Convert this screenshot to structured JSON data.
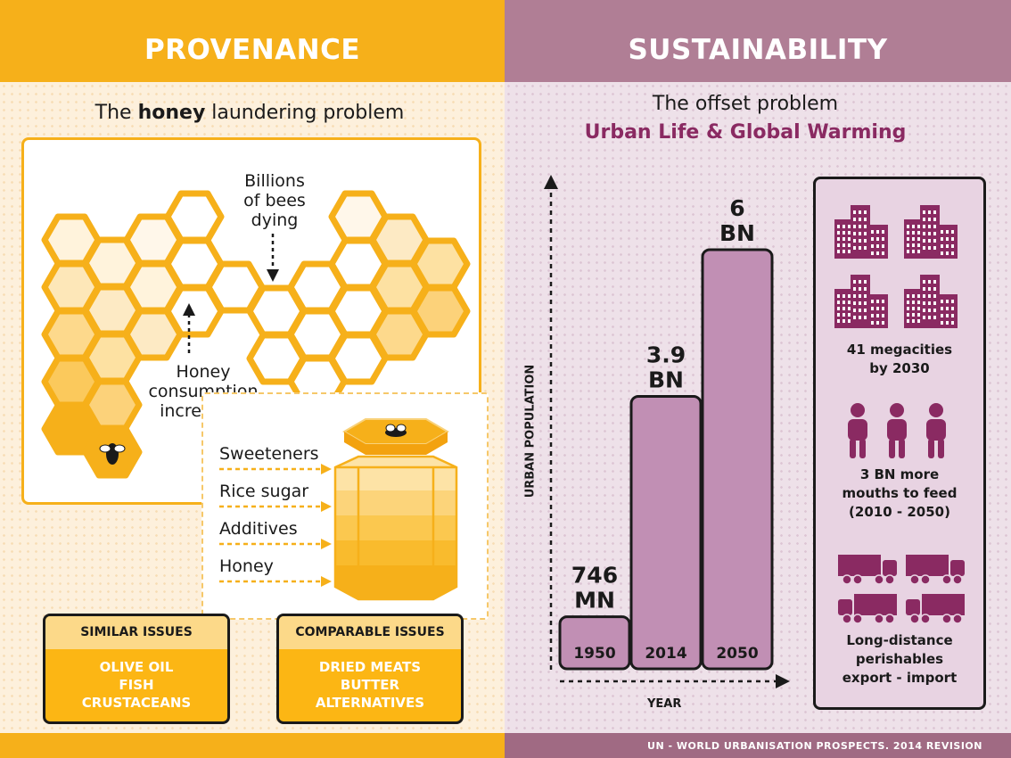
{
  "provenance": {
    "header": "PROVENANCE",
    "subtitle_pre": "The ",
    "subtitle_bold": "honey",
    "subtitle_post": " laundering problem",
    "bees_line1": "Billions",
    "bees_line2": "of bees",
    "bees_line3": "dying",
    "honey_line1": "Honey",
    "honey_line2": "consumption",
    "honey_line3": "increasing",
    "jar_ingredients": [
      "Sweeteners",
      "Rice sugar",
      "Additives",
      "Honey"
    ],
    "similar": {
      "title": "SIMILAR ISSUES",
      "items": [
        "OLIVE OIL",
        "FISH",
        "CRUSTACEANS"
      ]
    },
    "comparable": {
      "title": "COMPARABLE ISSUES",
      "items": [
        "DRIED MEATS",
        "BUTTER",
        "ALTERNATIVES"
      ]
    }
  },
  "sustainability": {
    "header": "SUSTAINABILITY",
    "subtitle1": "The offset problem",
    "subtitle2": "Urban Life & Global Warming",
    "megacities": {
      "line1": "41 megacities",
      "line2": "by 2030"
    },
    "mouths": {
      "line1": "3 BN more",
      "line2": "mouths to feed",
      "line3": "(2010 - 2050)"
    },
    "perishables": {
      "line1": "Long-distance",
      "line2": "perishables",
      "line3": "export - import"
    }
  },
  "chart_data": {
    "type": "bar",
    "categories": [
      "1950",
      "2014",
      "2050"
    ],
    "values": [
      0.746,
      3.9,
      6.0
    ],
    "value_labels": [
      [
        "746",
        "MN"
      ],
      [
        "3.9",
        "BN"
      ],
      [
        "6",
        "BN"
      ]
    ],
    "unit": "billions",
    "xlabel": "YEAR",
    "ylabel": "URBAN POPULATION",
    "ylim": [
      0,
      6
    ]
  },
  "footer": {
    "source": "UN - WORLD URBANISATION PROSPECTS. 2014 REVISION"
  },
  "colors": {
    "honey": "#f6b01a",
    "mauve": "#b07e95",
    "plum": "#8a2a62",
    "bar_fill": "#c18fb4"
  }
}
